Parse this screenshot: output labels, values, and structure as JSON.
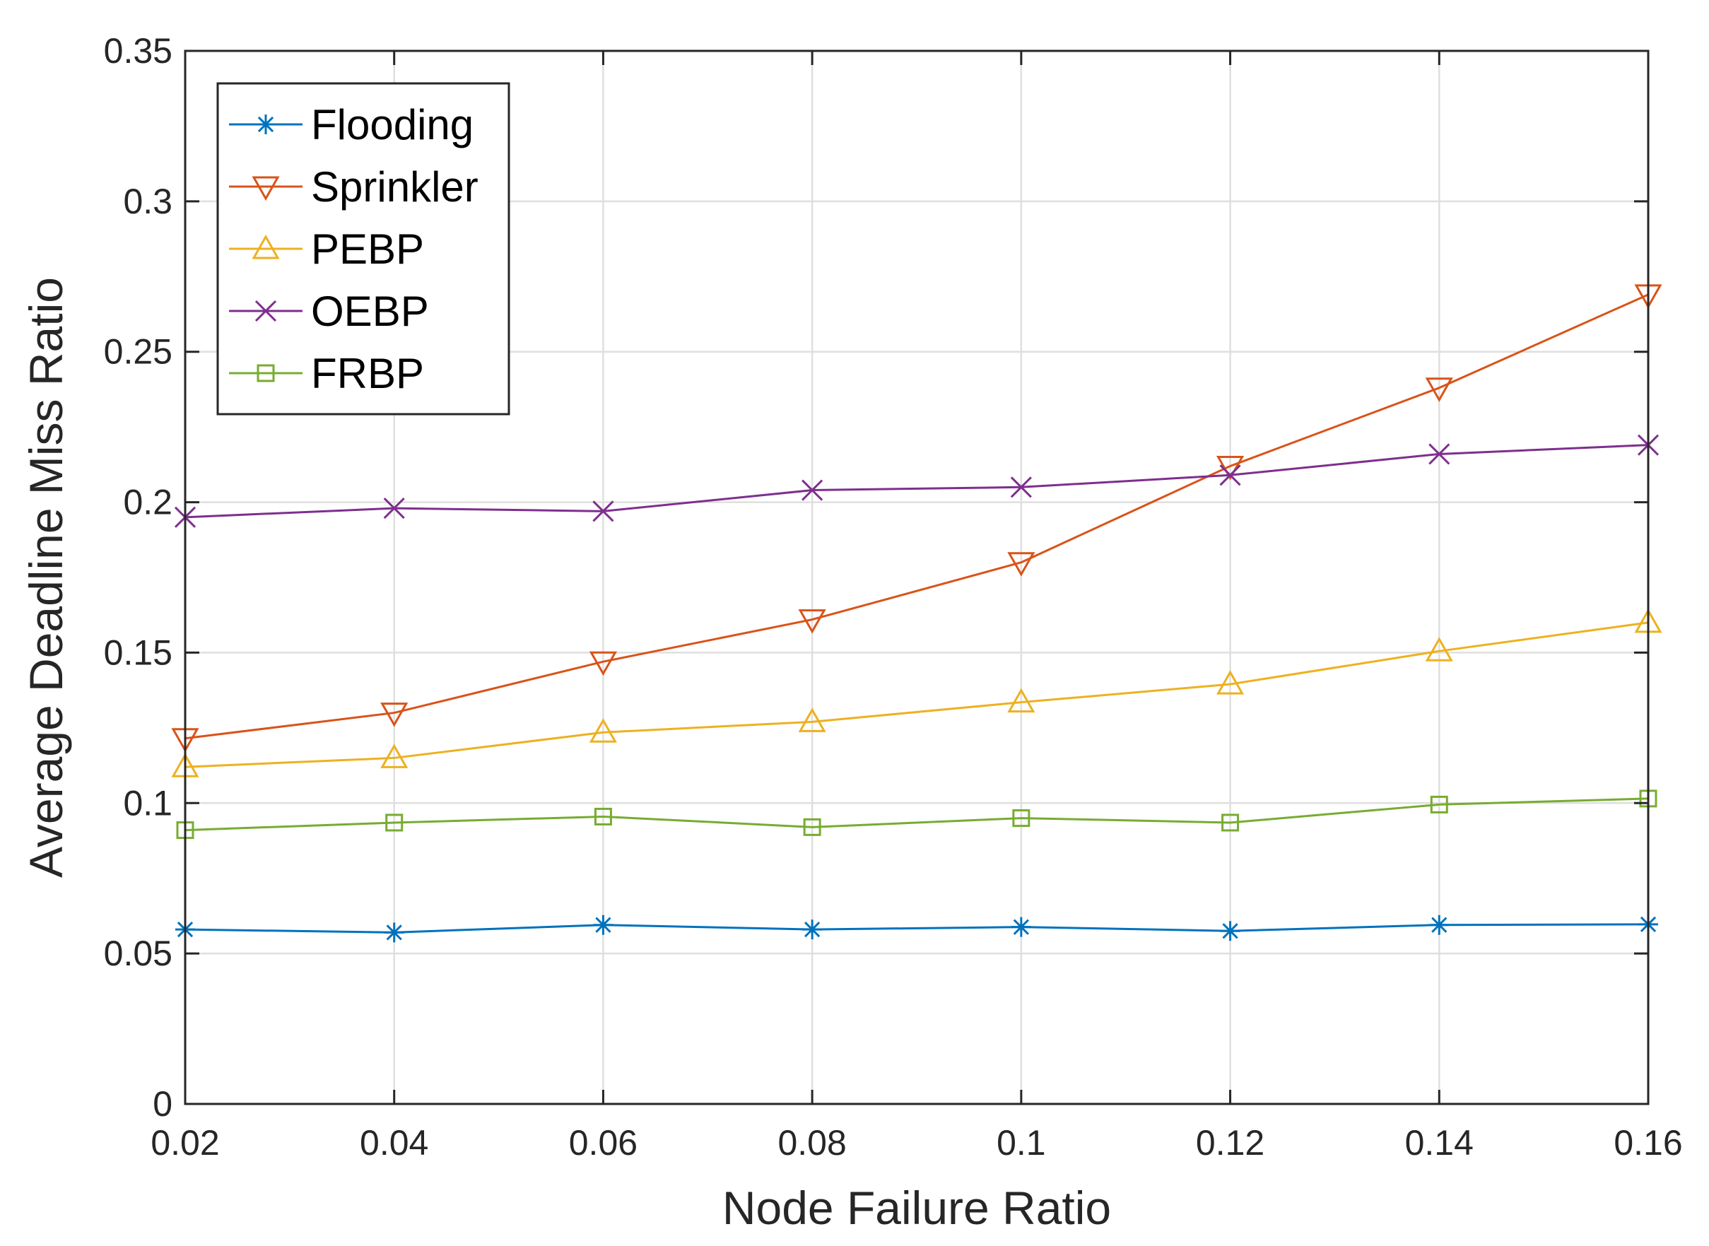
{
  "chart_data": {
    "type": "line",
    "xlabel": "Node Failure Ratio",
    "ylabel": "Average Deadline Miss Ratio",
    "xlim": [
      0.02,
      0.16
    ],
    "ylim": [
      0,
      0.35
    ],
    "x": [
      0.02,
      0.04,
      0.06,
      0.08,
      0.1,
      0.12,
      0.14,
      0.16
    ],
    "xticks": [
      "0.02",
      "0.04",
      "0.06",
      "0.08",
      "0.1",
      "0.12",
      "0.14",
      "0.16"
    ],
    "yticks": [
      "0",
      "0.05",
      "0.1",
      "0.15",
      "0.2",
      "0.25",
      "0.3",
      "0.35"
    ],
    "grid": true,
    "legend_position": "top-left",
    "series": [
      {
        "name": "Flooding",
        "marker": "asterisk",
        "color": "#0072BD",
        "values": [
          0.058,
          0.057,
          0.0595,
          0.058,
          0.0588,
          0.0575,
          0.0595,
          0.0597
        ]
      },
      {
        "name": "Sprinkler",
        "marker": "triangle-down",
        "color": "#D95319",
        "values": [
          0.1215,
          0.13,
          0.147,
          0.161,
          0.18,
          0.212,
          0.238,
          0.269
        ]
      },
      {
        "name": "PEBP",
        "marker": "triangle-up",
        "color": "#EDB120",
        "values": [
          0.112,
          0.115,
          0.1235,
          0.127,
          0.1335,
          0.1395,
          0.1505,
          0.16
        ]
      },
      {
        "name": "OEBP",
        "marker": "x",
        "color": "#7E2F8E",
        "values": [
          0.195,
          0.198,
          0.197,
          0.204,
          0.205,
          0.209,
          0.216,
          0.219
        ]
      },
      {
        "name": "FRBP",
        "marker": "square",
        "color": "#77AC30",
        "values": [
          0.091,
          0.0935,
          0.0955,
          0.092,
          0.095,
          0.0935,
          0.0995,
          0.1015
        ]
      }
    ]
  }
}
